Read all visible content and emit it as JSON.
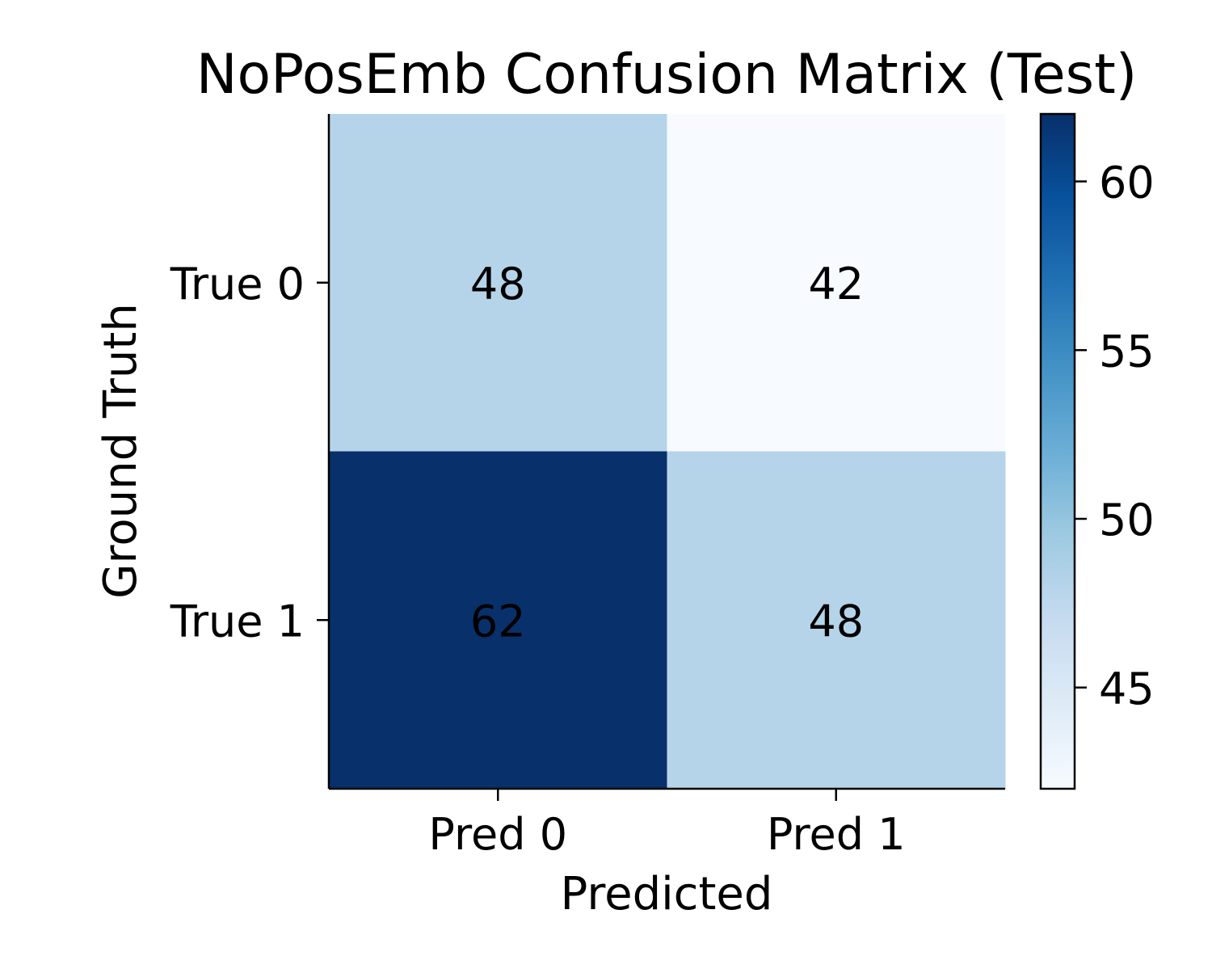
{
  "chart_data": {
    "type": "heatmap",
    "title": "NoPosEmb Confusion Matrix (Test)",
    "xlabel": "Predicted",
    "ylabel": "Ground Truth",
    "x_categories": [
      "Pred 0",
      "Pred 1"
    ],
    "y_categories": [
      "True 0",
      "True 1"
    ],
    "values": [
      [
        48,
        42
      ],
      [
        62,
        48
      ]
    ],
    "colormap": "Blues",
    "colorbar": {
      "range": [
        42,
        62
      ],
      "ticks": [
        45,
        50,
        55,
        60
      ],
      "tick_labels": [
        "45",
        "50",
        "55",
        "60"
      ]
    },
    "grid": false,
    "colors": {
      "low": "#f7fbff",
      "high": "#08306b",
      "text": "#000000"
    }
  }
}
